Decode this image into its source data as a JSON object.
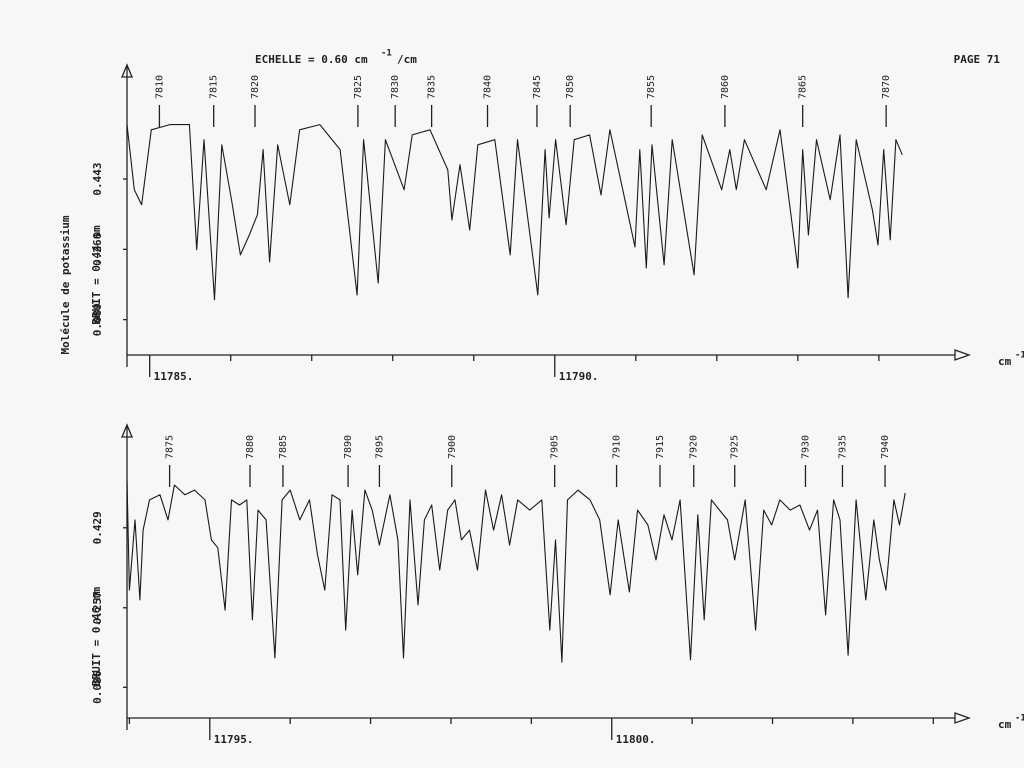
{
  "chart_data": [
    {
      "type": "line",
      "title": "ECHELLE = 0.60 cm",
      "title_superscript": "-1",
      "title_suffix": "/cm",
      "page_label": "PAGE 71",
      "side_label": "Molécule de potassium",
      "ylabel": "BRUIT = 0.44 mm",
      "xlabel": "cm",
      "xlabel_superscript": "-1",
      "color": "#1a1a1a",
      "xlim": [
        11784.72,
        11794.94
      ],
      "ylim": [
        0,
        0.73
      ],
      "xticks": [
        {
          "value": 11785,
          "label": "11785."
        },
        {
          "value": 11790,
          "label": "11790."
        }
      ],
      "x_minor_ticks": [
        11786,
        11787,
        11788,
        11789,
        11791,
        11792,
        11793,
        11794
      ],
      "yticks": [
        0.443,
        0.266,
        0.089
      ],
      "line_labels": [
        {
          "label": "7810",
          "x": 11785.12
        },
        {
          "label": "7815",
          "x": 11785.79
        },
        {
          "label": "7820",
          "x": 11786.3
        },
        {
          "label": "7825",
          "x": 11787.57
        },
        {
          "label": "7830",
          "x": 11788.03
        },
        {
          "label": "7835",
          "x": 11788.48
        },
        {
          "label": "7840",
          "x": 11789.17
        },
        {
          "label": "7845",
          "x": 11789.78
        },
        {
          "label": "7850",
          "x": 11790.19
        },
        {
          "label": "7855",
          "x": 11791.19
        },
        {
          "label": "7860",
          "x": 11792.1
        },
        {
          "label": "7865",
          "x": 11793.06
        },
        {
          "label": "7870",
          "x": 11794.09
        }
      ],
      "x": [
        11784.72,
        11784.81,
        11784.9,
        11785.02,
        11785.25,
        11785.49,
        11785.58,
        11785.67,
        11785.8,
        11785.89,
        11786.01,
        11786.12,
        11786.23,
        11786.33,
        11786.4,
        11786.48,
        11786.58,
        11786.73,
        11786.85,
        11787.1,
        11787.35,
        11787.56,
        11787.64,
        11787.82,
        11787.91,
        11788.14,
        11788.24,
        11788.46,
        11788.68,
        11788.73,
        11788.83,
        11788.95,
        11789.05,
        11789.26,
        11789.45,
        11789.54,
        11789.79,
        11789.88,
        11789.93,
        11790.01,
        11790.14,
        11790.24,
        11790.43,
        11790.57,
        11790.68,
        11790.99,
        11791.05,
        11791.13,
        11791.2,
        11791.35,
        11791.45,
        11791.72,
        11791.82,
        11792.06,
        11792.16,
        11792.24,
        11792.34,
        11792.61,
        11792.78,
        11793.0,
        11793.06,
        11793.13,
        11793.23,
        11793.4,
        11793.52,
        11793.62,
        11793.72,
        11793.92,
        11793.99,
        11794.06,
        11794.14,
        11794.21,
        11794.29
      ],
      "values": [
        0.58,
        0.416,
        0.378,
        0.567,
        0.58,
        0.58,
        0.265,
        0.542,
        0.139,
        0.529,
        0.391,
        0.252,
        0.302,
        0.353,
        0.517,
        0.234,
        0.529,
        0.378,
        0.567,
        0.58,
        0.517,
        0.151,
        0.542,
        0.181,
        0.542,
        0.416,
        0.554,
        0.567,
        0.466,
        0.34,
        0.479,
        0.315,
        0.529,
        0.542,
        0.252,
        0.542,
        0.151,
        0.517,
        0.345,
        0.542,
        0.328,
        0.542,
        0.554,
        0.403,
        0.567,
        0.272,
        0.517,
        0.219,
        0.529,
        0.227,
        0.542,
        0.202,
        0.554,
        0.416,
        0.517,
        0.416,
        0.542,
        0.416,
        0.567,
        0.219,
        0.517,
        0.302,
        0.542,
        0.391,
        0.554,
        0.144,
        0.542,
        0.365,
        0.277,
        0.517,
        0.29,
        0.542,
        0.504
      ]
    },
    {
      "type": "line",
      "ylabel": "BRUIT = 0.46 mm",
      "xlabel": "cm",
      "xlabel_superscript": "-1",
      "color": "#1a1a1a",
      "xlim": [
        11793.97,
        11804.27
      ],
      "ylim": [
        0.02,
        0.65
      ],
      "xticks": [
        {
          "value": 11795,
          "label": "11795."
        },
        {
          "value": 11800,
          "label": "11800."
        }
      ],
      "x_minor_ticks": [
        11794,
        11796,
        11797,
        11798,
        11799,
        11801,
        11802,
        11803,
        11804
      ],
      "yticks": [
        0.429,
        0.257,
        0.086
      ],
      "line_labels": [
        {
          "label": "7875",
          "x": 11794.5
        },
        {
          "label": "7880",
          "x": 11795.5
        },
        {
          "label": "7885",
          "x": 11795.91
        },
        {
          "label": "7890",
          "x": 11796.72
        },
        {
          "label": "7895",
          "x": 11797.11
        },
        {
          "label": "7900",
          "x": 11798.01
        },
        {
          "label": "7905",
          "x": 11799.29
        },
        {
          "label": "7910",
          "x": 11800.06
        },
        {
          "label": "7915",
          "x": 11800.6
        },
        {
          "label": "7920",
          "x": 11801.02
        },
        {
          "label": "7925",
          "x": 11801.53
        },
        {
          "label": "7930",
          "x": 11802.41
        },
        {
          "label": "7935",
          "x": 11802.87
        },
        {
          "label": "7940",
          "x": 11803.4
        }
      ],
      "x": [
        11793.97,
        11794.0,
        11794.07,
        11794.13,
        11794.17,
        11794.25,
        11794.38,
        11794.48,
        11794.56,
        11794.69,
        11794.81,
        11794.94,
        11795.02,
        11795.1,
        11795.19,
        11795.27,
        11795.37,
        11795.46,
        11795.53,
        11795.6,
        11795.7,
        11795.81,
        11795.9,
        11796.0,
        11796.12,
        11796.24,
        11796.34,
        11796.43,
        11796.52,
        11796.62,
        11796.69,
        11796.77,
        11796.84,
        11796.93,
        11797.02,
        11797.11,
        11797.24,
        11797.34,
        11797.41,
        11797.49,
        11797.59,
        11797.67,
        11797.76,
        11797.86,
        11797.96,
        11798.05,
        11798.13,
        11798.23,
        11798.33,
        11798.43,
        11798.53,
        11798.63,
        11798.73,
        11798.83,
        11798.98,
        11799.13,
        11799.23,
        11799.3,
        11799.38,
        11799.45,
        11799.58,
        11799.73,
        11799.85,
        11799.98,
        11800.08,
        11800.22,
        11800.32,
        11800.45,
        11800.55,
        11800.65,
        11800.75,
        11800.85,
        11800.98,
        11801.07,
        11801.15,
        11801.24,
        11801.34,
        11801.44,
        11801.53,
        11801.66,
        11801.79,
        11801.89,
        11801.99,
        11802.09,
        11802.22,
        11802.34,
        11802.46,
        11802.56,
        11802.66,
        11802.76,
        11802.84,
        11802.94,
        11803.04,
        11803.16,
        11803.26,
        11803.33,
        11803.41,
        11803.51,
        11803.58,
        11803.65
      ],
      "values": [
        0.532,
        0.295,
        0.446,
        0.274,
        0.424,
        0.489,
        0.5,
        0.446,
        0.521,
        0.5,
        0.51,
        0.489,
        0.403,
        0.386,
        0.252,
        0.489,
        0.478,
        0.489,
        0.231,
        0.467,
        0.446,
        0.149,
        0.489,
        0.51,
        0.446,
        0.489,
        0.371,
        0.295,
        0.5,
        0.489,
        0.209,
        0.467,
        0.328,
        0.51,
        0.467,
        0.392,
        0.5,
        0.403,
        0.149,
        0.489,
        0.263,
        0.446,
        0.478,
        0.338,
        0.467,
        0.489,
        0.403,
        0.424,
        0.338,
        0.51,
        0.424,
        0.5,
        0.392,
        0.489,
        0.467,
        0.489,
        0.209,
        0.403,
        0.14,
        0.489,
        0.51,
        0.489,
        0.446,
        0.285,
        0.446,
        0.291,
        0.467,
        0.435,
        0.36,
        0.457,
        0.403,
        0.489,
        0.145,
        0.457,
        0.231,
        0.489,
        0.467,
        0.446,
        0.36,
        0.489,
        0.209,
        0.467,
        0.435,
        0.489,
        0.467,
        0.478,
        0.424,
        0.467,
        0.242,
        0.489,
        0.446,
        0.155,
        0.489,
        0.274,
        0.446,
        0.36,
        0.295,
        0.489,
        0.435,
        0.504
      ]
    }
  ]
}
